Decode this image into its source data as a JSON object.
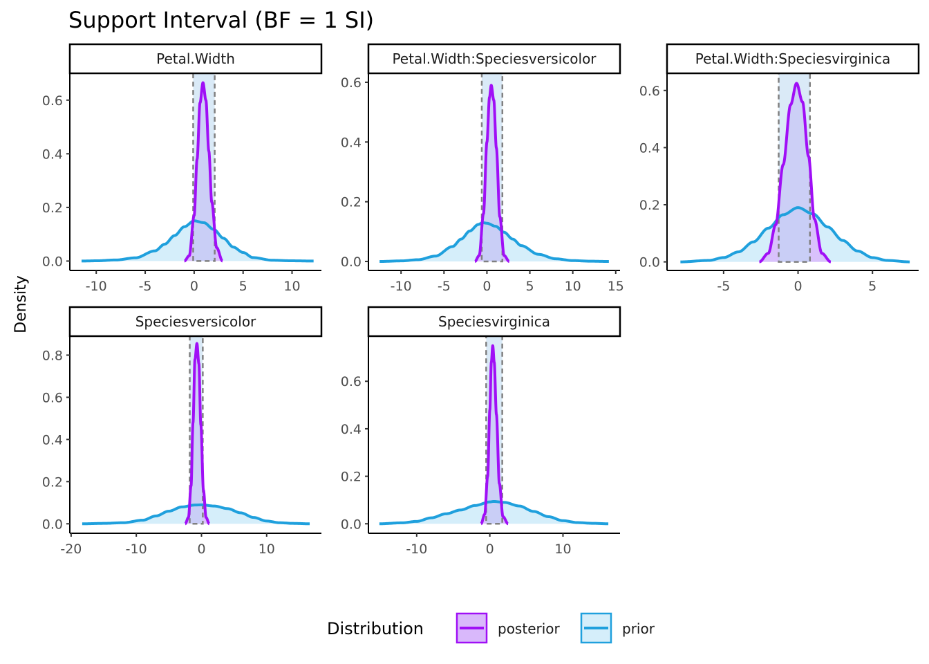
{
  "chart_data": {
    "type": "area",
    "title": "Support Interval (BF = 1 SI)",
    "ylabel": "Density",
    "xlabel": "",
    "grid": false,
    "legend": {
      "title": "Distribution",
      "position": "bottom",
      "items": [
        {
          "label": "posterior",
          "line_color": "#A00FF6",
          "fill_color": "#D9B8FB"
        },
        {
          "label": "prior",
          "line_color": "#1FA0DD",
          "fill_color": "#D5EEFA"
        }
      ]
    },
    "support_interval_fill": "#BBD9F0",
    "support_interval_border": "#808080",
    "panels": [
      {
        "strip": "Petal.Width",
        "xlim": [
          -12.7,
          13.0
        ],
        "ylim": [
          -0.035,
          0.7
        ],
        "xticks": [
          -10,
          -5,
          0,
          5,
          10
        ],
        "xtick_labels": [
          "-10",
          "-5",
          "0",
          "5",
          "10"
        ],
        "yticks": [
          0.0,
          0.2,
          0.4,
          0.6
        ],
        "ytick_labels": [
          "0.0",
          "0.2",
          "0.4",
          "0.6"
        ],
        "si": [
          -0.1,
          2.1
        ],
        "prior": {
          "x_range": [
            -11.5,
            12.2
          ],
          "peak_x": 0.0,
          "peak_y": 0.15,
          "x": [
            -11.5,
            -10,
            -8,
            -6,
            -4,
            -3,
            -2,
            -1,
            0,
            1,
            2,
            3,
            4,
            5,
            6,
            8,
            10,
            12.2
          ],
          "y": [
            0.0,
            0.001,
            0.004,
            0.012,
            0.038,
            0.063,
            0.095,
            0.128,
            0.15,
            0.143,
            0.118,
            0.085,
            0.052,
            0.032,
            0.013,
            0.003,
            0.001,
            0.0
          ]
        },
        "posterior": {
          "x_range": [
            -1.0,
            2.9
          ],
          "peak_x": 0.9,
          "peak_y": 0.665,
          "x": [
            -1.0,
            -0.5,
            0,
            0.3,
            0.6,
            0.9,
            1.2,
            1.5,
            1.8,
            2.3,
            2.9
          ],
          "y": [
            0.0,
            0.02,
            0.17,
            0.38,
            0.59,
            0.665,
            0.6,
            0.41,
            0.22,
            0.05,
            0.0
          ]
        }
      },
      {
        "strip": "Petal.Width:Speciesversicolor",
        "xlim": [
          -13.8,
          15.5
        ],
        "ylim": [
          -0.03,
          0.63
        ],
        "xticks": [
          -10,
          -5,
          0,
          5,
          10,
          15
        ],
        "xtick_labels": [
          "-10",
          "-5",
          "0",
          "5",
          "10",
          "15"
        ],
        "yticks": [
          0.0,
          0.2,
          0.4,
          0.6
        ],
        "ytick_labels": [
          "0.0",
          "0.2",
          "0.4",
          "0.6"
        ],
        "si": [
          -0.6,
          1.8
        ],
        "prior": {
          "x_range": [
            -12.5,
            14.2
          ],
          "peak_x": -0.5,
          "peak_y": 0.13,
          "x": [
            -12.5,
            -10,
            -8,
            -6,
            -4,
            -3,
            -2,
            -1,
            -0.5,
            0,
            1,
            2,
            3,
            4,
            6,
            8,
            10,
            12,
            14.2
          ],
          "y": [
            0.0,
            0.002,
            0.006,
            0.018,
            0.05,
            0.075,
            0.102,
            0.124,
            0.13,
            0.128,
            0.118,
            0.098,
            0.075,
            0.053,
            0.024,
            0.009,
            0.003,
            0.001,
            0.0
          ]
        },
        "posterior": {
          "x_range": [
            -1.4,
            2.6
          ],
          "peak_x": 0.5,
          "peak_y": 0.59,
          "x": [
            -1.4,
            -0.9,
            -0.4,
            0,
            0.3,
            0.5,
            0.8,
            1.1,
            1.5,
            2.0,
            2.6
          ],
          "y": [
            0.0,
            0.02,
            0.16,
            0.4,
            0.55,
            0.59,
            0.54,
            0.38,
            0.15,
            0.02,
            0.0
          ]
        }
      },
      {
        "strip": "Petal.Width:Speciesvirginica",
        "xlim": [
          -8.8,
          8.1
        ],
        "ylim": [
          -0.03,
          0.66
        ],
        "xticks": [
          -5,
          0,
          5
        ],
        "xtick_labels": [
          "-5",
          "0",
          "5"
        ],
        "yticks": [
          0.0,
          0.2,
          0.4,
          0.6
        ],
        "ytick_labels": [
          "0.0",
          "0.2",
          "0.4",
          "0.6"
        ],
        "si": [
          -1.3,
          0.8
        ],
        "prior": {
          "x_range": [
            -7.9,
            7.5
          ],
          "peak_x": 0.0,
          "peak_y": 0.19,
          "x": [
            -7.9,
            -6,
            -5,
            -4,
            -3,
            -2,
            -1,
            0,
            1,
            2,
            3,
            4,
            5,
            6,
            7.5
          ],
          "y": [
            0.0,
            0.005,
            0.015,
            0.035,
            0.07,
            0.118,
            0.165,
            0.19,
            0.168,
            0.122,
            0.075,
            0.038,
            0.015,
            0.005,
            0.0
          ]
        },
        "posterior": {
          "x_range": [
            -2.6,
            2.2
          ],
          "peak_x": -0.1,
          "peak_y": 0.625,
          "x": [
            -2.6,
            -2.0,
            -1.5,
            -1.0,
            -0.5,
            -0.1,
            0.3,
            0.7,
            1.1,
            1.6,
            2.2
          ],
          "y": [
            0.0,
            0.03,
            0.13,
            0.34,
            0.55,
            0.625,
            0.56,
            0.37,
            0.15,
            0.03,
            0.0
          ]
        }
      },
      {
        "strip": "Speciesversicolor",
        "xlim": [
          -20.2,
          18.4
        ],
        "ylim": [
          -0.045,
          0.89
        ],
        "xticks": [
          -20,
          -10,
          0,
          10
        ],
        "xtick_labels": [
          "-20",
          "-10",
          "0",
          "10"
        ],
        "yticks": [
          0.0,
          0.2,
          0.4,
          0.6,
          0.8
        ],
        "ytick_labels": [
          "0.0",
          "0.2",
          "0.4",
          "0.6",
          "0.8"
        ],
        "si": [
          -1.8,
          0.2
        ],
        "prior": {
          "x_range": [
            -18.3,
            16.6
          ],
          "peak_x": -0.5,
          "peak_y": 0.09,
          "x": [
            -18.3,
            -15,
            -12,
            -9,
            -7,
            -5,
            -3,
            -1,
            0,
            2,
            4,
            6,
            8,
            10,
            12,
            14,
            16.6
          ],
          "y": [
            0.0,
            0.002,
            0.005,
            0.017,
            0.037,
            0.06,
            0.08,
            0.089,
            0.09,
            0.084,
            0.072,
            0.052,
            0.03,
            0.013,
            0.005,
            0.002,
            0.0
          ]
        },
        "posterior": {
          "x_range": [
            -2.5,
            1.2
          ],
          "peak_x": -0.7,
          "peak_y": 0.855,
          "x": [
            -2.5,
            -2.0,
            -1.6,
            -1.3,
            -1.0,
            -0.7,
            -0.4,
            -0.1,
            0.3,
            0.7,
            1.2
          ],
          "y": [
            0.0,
            0.03,
            0.18,
            0.48,
            0.78,
            0.855,
            0.76,
            0.47,
            0.16,
            0.03,
            0.0
          ]
        }
      },
      {
        "strip": "Speciesvirginica",
        "xlim": [
          -16.6,
          17.8
        ],
        "ylim": [
          -0.04,
          0.79
        ],
        "xticks": [
          -10,
          0,
          10
        ],
        "xtick_labels": [
          "-10",
          "0",
          "10"
        ],
        "yticks": [
          0.0,
          0.2,
          0.4,
          0.6
        ],
        "ytick_labels": [
          "0.0",
          "0.2",
          "0.4",
          "0.6"
        ],
        "si": [
          -0.5,
          1.7
        ],
        "prior": {
          "x_range": [
            -15.1,
            16.2
          ],
          "peak_x": 0.5,
          "peak_y": 0.094,
          "x": [
            -15.1,
            -12,
            -10,
            -8,
            -6,
            -4,
            -2,
            0,
            0.5,
            2,
            4,
            6,
            8,
            10,
            12,
            14,
            16.2
          ],
          "y": [
            0.0,
            0.004,
            0.01,
            0.025,
            0.042,
            0.058,
            0.077,
            0.092,
            0.094,
            0.09,
            0.075,
            0.052,
            0.03,
            0.013,
            0.005,
            0.002,
            0.0
          ]
        },
        "posterior": {
          "x_range": [
            -1.2,
            2.5
          ],
          "peak_x": 0.4,
          "peak_y": 0.75,
          "x": [
            -1.2,
            -0.7,
            -0.3,
            0,
            0.2,
            0.4,
            0.6,
            0.9,
            1.3,
            1.8,
            2.5
          ],
          "y": [
            0.0,
            0.04,
            0.2,
            0.48,
            0.68,
            0.75,
            0.68,
            0.46,
            0.17,
            0.03,
            0.0
          ]
        }
      }
    ]
  }
}
